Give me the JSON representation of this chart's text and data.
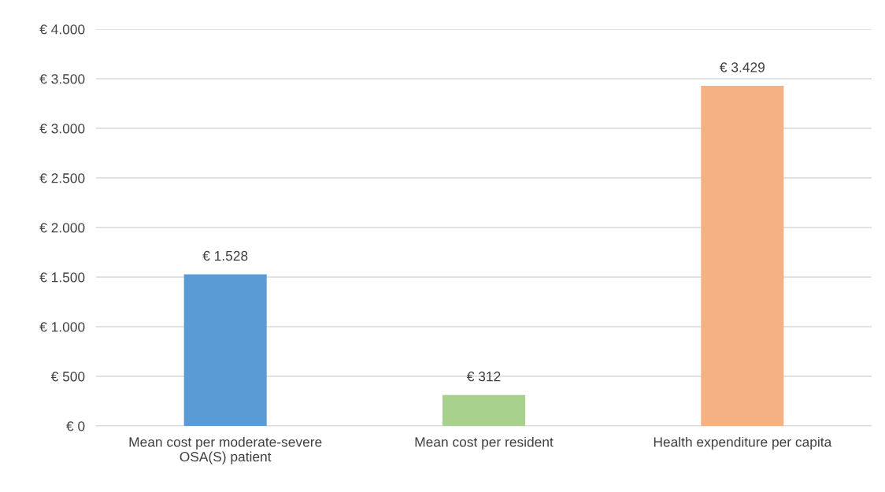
{
  "chart_data": {
    "type": "bar",
    "categories": [
      "Mean cost per moderate-severe\nOSA(S) patient",
      "Mean cost per resident",
      "Health expenditure per capita"
    ],
    "values": [
      1528,
      312,
      3429
    ],
    "colors": [
      "#5b9bd5",
      "#a9d18e",
      "#f4b183"
    ],
    "value_labels": [
      "€ 1.528",
      "€ 312",
      "€ 3.429"
    ],
    "ylim": [
      0,
      4000
    ],
    "yticks": [
      {
        "value": 0,
        "label": "€ 0"
      },
      {
        "value": 500,
        "label": "€ 500"
      },
      {
        "value": 1000,
        "label": "€ 1.000"
      },
      {
        "value": 1500,
        "label": "€ 1.500"
      },
      {
        "value": 2000,
        "label": "€ 2.000"
      },
      {
        "value": 2500,
        "label": "€ 2.500"
      },
      {
        "value": 3000,
        "label": "€ 3.000"
      },
      {
        "value": 3500,
        "label": "€ 3.500"
      },
      {
        "value": 4000,
        "label": "€ 4.000"
      }
    ],
    "grid": "y",
    "legend": false
  }
}
